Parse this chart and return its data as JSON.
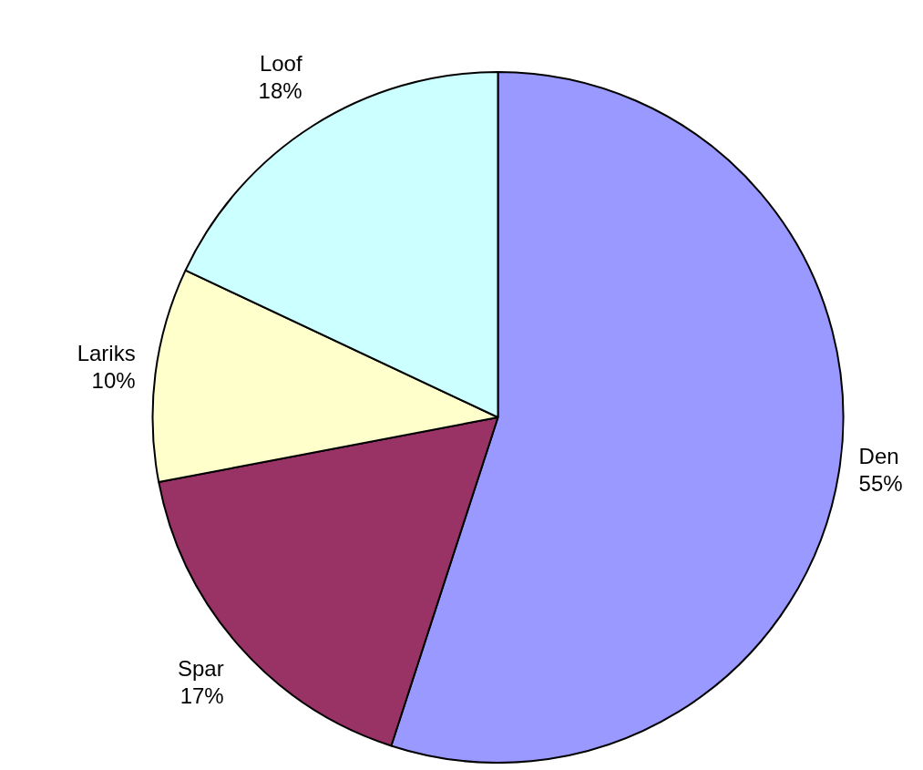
{
  "chart_data": {
    "type": "pie",
    "categories": [
      "Den",
      "Spar",
      "Lariks",
      "Loof"
    ],
    "values": [
      55,
      17,
      10,
      18
    ],
    "colors": [
      "#9999ff",
      "#993366",
      "#ffffcc",
      "#ccffff"
    ],
    "value_labels": [
      "55%",
      "17%",
      "10%",
      "18%"
    ],
    "legend": false
  }
}
